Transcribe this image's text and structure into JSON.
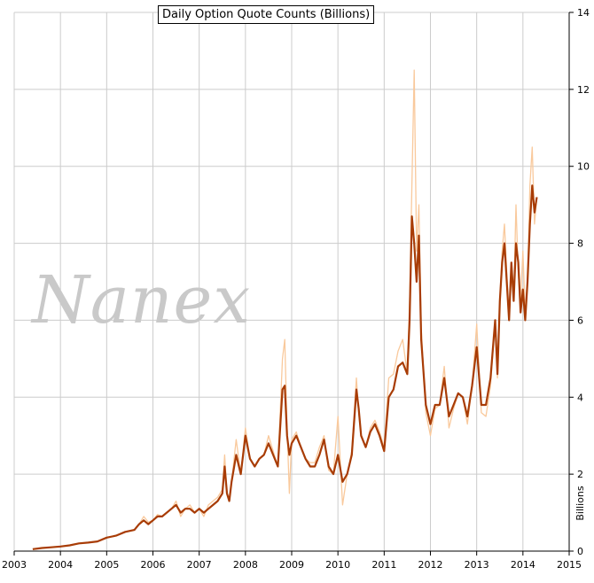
{
  "chart_data": {
    "type": "line",
    "title": "Daily Option Quote Counts (Billions)",
    "ylabel": "Billions",
    "xlabel": "",
    "watermark": "Nanex",
    "xlim": [
      2003,
      2015
    ],
    "ylim": [
      0,
      14
    ],
    "x_ticks": [
      "2003",
      "2004",
      "2005",
      "2006",
      "2007",
      "2008",
      "2009",
      "2010",
      "2011",
      "2012",
      "2013",
      "2014",
      "2015"
    ],
    "y_ticks": [
      "0",
      "2",
      "4",
      "6",
      "8",
      "10",
      "12",
      "14"
    ],
    "grid": true,
    "colors": {
      "daily": "#f9c99c",
      "average": "#a83c06",
      "grid": "#cccccc"
    },
    "series": [
      {
        "role": "daily",
        "x": [
          2003.4,
          2003.6,
          2003.8,
          2004.0,
          2004.2,
          2004.4,
          2004.6,
          2004.8,
          2005.0,
          2005.2,
          2005.4,
          2005.6,
          2005.7,
          2005.8,
          2005.9,
          2006.0,
          2006.1,
          2006.2,
          2006.4,
          2006.5,
          2006.6,
          2006.7,
          2006.8,
          2006.9,
          2007.0,
          2007.1,
          2007.2,
          2007.3,
          2007.4,
          2007.5,
          2007.55,
          2007.6,
          2007.65,
          2007.7,
          2007.8,
          2007.9,
          2008.0,
          2008.05,
          2008.1,
          2008.2,
          2008.3,
          2008.4,
          2008.5,
          2008.6,
          2008.7,
          2008.8,
          2008.85,
          2008.9,
          2008.95,
          2009.0,
          2009.1,
          2009.2,
          2009.3,
          2009.4,
          2009.5,
          2009.6,
          2009.7,
          2009.8,
          2009.9,
          2010.0,
          2010.1,
          2010.2,
          2010.3,
          2010.4,
          2010.45,
          2010.5,
          2010.6,
          2010.7,
          2010.8,
          2010.9,
          2011.0,
          2011.1,
          2011.2,
          2011.3,
          2011.4,
          2011.5,
          2011.55,
          2011.6,
          2011.65,
          2011.7,
          2011.75,
          2011.8,
          2011.9,
          2012.0,
          2012.1,
          2012.2,
          2012.3,
          2012.4,
          2012.5,
          2012.6,
          2012.7,
          2012.8,
          2012.9,
          2013.0,
          2013.1,
          2013.2,
          2013.3,
          2013.4,
          2013.45,
          2013.5,
          2013.55,
          2013.6,
          2013.7,
          2013.75,
          2013.8,
          2013.85,
          2013.9,
          2013.95,
          2014.0,
          2014.05,
          2014.1,
          2014.15,
          2014.2,
          2014.25,
          2014.3
        ],
        "values": [
          0.05,
          0.08,
          0.1,
          0.12,
          0.15,
          0.2,
          0.22,
          0.25,
          0.35,
          0.4,
          0.5,
          0.55,
          0.7,
          0.9,
          0.75,
          0.8,
          0.95,
          0.9,
          1.1,
          1.3,
          0.9,
          1.1,
          1.2,
          1.0,
          1.1,
          0.9,
          1.2,
          1.3,
          1.4,
          1.6,
          2.5,
          1.5,
          1.3,
          1.8,
          2.9,
          2.0,
          3.2,
          2.8,
          2.4,
          2.2,
          2.4,
          2.5,
          3.0,
          2.6,
          2.2,
          5.0,
          5.5,
          3.2,
          1.5,
          2.9,
          3.1,
          2.7,
          2.4,
          2.3,
          2.3,
          2.7,
          3.0,
          2.1,
          2.0,
          3.5,
          1.2,
          2.0,
          2.6,
          4.5,
          3.6,
          3.0,
          2.7,
          3.2,
          3.4,
          3.1,
          2.7,
          4.5,
          4.6,
          5.2,
          5.5,
          4.6,
          6.5,
          9.5,
          12.5,
          7.8,
          9.0,
          5.8,
          3.6,
          3.0,
          3.7,
          3.8,
          4.8,
          3.2,
          3.7,
          4.1,
          4.0,
          3.3,
          4.3,
          5.9,
          3.6,
          3.5,
          4.3,
          6.0,
          4.5,
          6.5,
          7.8,
          8.5,
          6.0,
          7.2,
          6.5,
          9.0,
          7.2,
          6.5,
          7.8,
          6.2,
          7.0,
          9.5,
          10.5,
          8.5,
          9.2
        ]
      },
      {
        "role": "average",
        "x": [
          2003.4,
          2003.6,
          2003.8,
          2004.0,
          2004.2,
          2004.4,
          2004.6,
          2004.8,
          2005.0,
          2005.2,
          2005.4,
          2005.6,
          2005.7,
          2005.8,
          2005.9,
          2006.0,
          2006.1,
          2006.2,
          2006.4,
          2006.5,
          2006.6,
          2006.7,
          2006.8,
          2006.9,
          2007.0,
          2007.1,
          2007.2,
          2007.3,
          2007.4,
          2007.5,
          2007.55,
          2007.6,
          2007.65,
          2007.7,
          2007.8,
          2007.9,
          2008.0,
          2008.05,
          2008.1,
          2008.2,
          2008.3,
          2008.4,
          2008.5,
          2008.6,
          2008.7,
          2008.8,
          2008.85,
          2008.9,
          2008.95,
          2009.0,
          2009.1,
          2009.2,
          2009.3,
          2009.4,
          2009.5,
          2009.6,
          2009.7,
          2009.8,
          2009.9,
          2010.0,
          2010.1,
          2010.2,
          2010.3,
          2010.4,
          2010.45,
          2010.5,
          2010.6,
          2010.7,
          2010.8,
          2010.9,
          2011.0,
          2011.1,
          2011.2,
          2011.3,
          2011.4,
          2011.5,
          2011.55,
          2011.6,
          2011.65,
          2011.7,
          2011.75,
          2011.8,
          2011.9,
          2012.0,
          2012.1,
          2012.2,
          2012.3,
          2012.4,
          2012.5,
          2012.6,
          2012.7,
          2012.8,
          2012.9,
          2013.0,
          2013.1,
          2013.2,
          2013.3,
          2013.4,
          2013.45,
          2013.5,
          2013.55,
          2013.6,
          2013.7,
          2013.75,
          2013.8,
          2013.85,
          2013.9,
          2013.95,
          2014.0,
          2014.05,
          2014.1,
          2014.15,
          2014.2,
          2014.25,
          2014.3
        ],
        "values": [
          0.05,
          0.08,
          0.1,
          0.12,
          0.15,
          0.2,
          0.22,
          0.25,
          0.35,
          0.4,
          0.5,
          0.55,
          0.7,
          0.8,
          0.7,
          0.8,
          0.9,
          0.9,
          1.1,
          1.2,
          1.0,
          1.1,
          1.1,
          1.0,
          1.1,
          1.0,
          1.1,
          1.2,
          1.3,
          1.5,
          2.2,
          1.5,
          1.3,
          1.8,
          2.5,
          2.0,
          3.0,
          2.7,
          2.4,
          2.2,
          2.4,
          2.5,
          2.8,
          2.5,
          2.2,
          4.2,
          4.3,
          3.0,
          2.5,
          2.8,
          3.0,
          2.7,
          2.4,
          2.2,
          2.2,
          2.5,
          2.9,
          2.2,
          2.0,
          2.5,
          1.8,
          2.0,
          2.5,
          4.2,
          3.7,
          3.0,
          2.7,
          3.1,
          3.3,
          3.0,
          2.6,
          4.0,
          4.2,
          4.8,
          4.9,
          4.6,
          6.0,
          8.7,
          8.0,
          7.0,
          8.2,
          5.5,
          3.8,
          3.3,
          3.8,
          3.8,
          4.5,
          3.5,
          3.8,
          4.1,
          4.0,
          3.5,
          4.3,
          5.3,
          3.8,
          3.8,
          4.5,
          6.0,
          4.6,
          6.5,
          7.5,
          8.0,
          6.0,
          7.5,
          6.5,
          8.0,
          7.5,
          6.2,
          6.8,
          6.0,
          7.0,
          8.5,
          9.5,
          8.8,
          9.2
        ]
      }
    ]
  }
}
